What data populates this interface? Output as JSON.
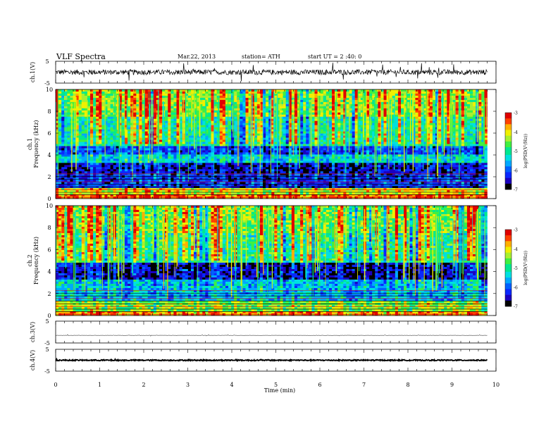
{
  "header": {
    "title": "VLF  Spectra",
    "date": "Mar.22, 2013",
    "station": "station= ATH",
    "start": "start  UT  =   2 :40: 0"
  },
  "colors": {
    "scale": [
      "#000000",
      "#1a00c0",
      "#0a28ff",
      "#0060ff",
      "#00a8ff",
      "#00e0e0",
      "#00e890",
      "#40f040",
      "#a8f030",
      "#f0f000",
      "#ffb000",
      "#ff4000",
      "#e00000",
      "#ffffff"
    ],
    "trace": "#000000"
  },
  "chart_data": [
    {
      "id": "ch1_waveform",
      "type": "line",
      "ylabel": "ch.1(V)",
      "yticks": [
        "5",
        "-5"
      ],
      "ylim": [
        -5,
        5
      ],
      "xlim": [
        0,
        10
      ],
      "data_extent_min": 9.8,
      "description_values": {
        "mean": 0,
        "noise_amplitude": 1.2,
        "spike_amplitude": 3.5
      }
    },
    {
      "id": "ch1_spectrogram",
      "type": "heatmap",
      "ylabel": "ch.1\nFrequency  (kHz)",
      "yticks": [
        "0",
        "2",
        "4",
        "6",
        "8",
        "10"
      ],
      "ylim": [
        0,
        10
      ],
      "xlim": [
        0,
        10
      ],
      "data_extent_min": 9.8,
      "colorbar": {
        "label": "log(PSD(V²/Hz))",
        "ticks": [
          "-3",
          "-4",
          "-5",
          "-6",
          "-7"
        ],
        "range": [
          -7,
          -3
        ]
      },
      "band_levels": [
        {
          "f_min": 0,
          "f_max": 0.3,
          "log_psd": -3.6
        },
        {
          "f_min": 0.3,
          "f_max": 1.0,
          "log_psd": -4.2
        },
        {
          "f_min": 1.0,
          "f_max": 2.3,
          "log_psd": -6.3
        },
        {
          "f_min": 2.3,
          "f_max": 3.2,
          "log_psd": -6.6
        },
        {
          "f_min": 3.2,
          "f_max": 4.0,
          "log_psd": -5.4
        },
        {
          "f_min": 4.0,
          "f_max": 4.8,
          "log_psd": -6.2
        },
        {
          "f_min": 4.8,
          "f_max": 7.5,
          "log_psd": -5.1
        },
        {
          "f_min": 7.5,
          "f_max": 10,
          "log_psd": -4.5
        }
      ]
    },
    {
      "id": "ch2_spectrogram",
      "type": "heatmap",
      "ylabel": "ch.2\nFrequency  (kHz)",
      "yticks": [
        "0",
        "2",
        "4",
        "6",
        "8",
        "10"
      ],
      "ylim": [
        0,
        10
      ],
      "xlim": [
        0,
        10
      ],
      "data_extent_min": 9.8,
      "colorbar": {
        "label": "log(PSD(V²/Hz))",
        "ticks": [
          "-3",
          "-4",
          "-5",
          "-6",
          "-7"
        ],
        "range": [
          -7,
          -3
        ]
      },
      "band_levels": [
        {
          "f_min": 0,
          "f_max": 0.3,
          "log_psd": -3.8
        },
        {
          "f_min": 0.3,
          "f_max": 1.3,
          "log_psd": -4.6
        },
        {
          "f_min": 1.3,
          "f_max": 3.2,
          "log_psd": -5.6
        },
        {
          "f_min": 3.2,
          "f_max": 4.9,
          "log_psd": -6.6
        },
        {
          "f_min": 4.9,
          "f_max": 7.5,
          "log_psd": -5.0
        },
        {
          "f_min": 7.5,
          "f_max": 10,
          "log_psd": -4.6
        }
      ]
    },
    {
      "id": "ch3_waveform",
      "type": "line",
      "ylabel": "ch.3(V)",
      "yticks": [
        "5",
        "-5"
      ],
      "ylim": [
        -5,
        5
      ],
      "xlim": [
        0,
        10
      ],
      "data_extent_min": 9.8,
      "description_values": {
        "mean": -1.5,
        "noise_amplitude": 0.05,
        "spike_amplitude": 0.4
      }
    },
    {
      "id": "ch4_waveform",
      "type": "line",
      "ylabel": "ch.4(V)",
      "yticks": [
        "5",
        "-5"
      ],
      "ylim": [
        -5,
        5
      ],
      "xlim": [
        0,
        10
      ],
      "data_extent_min": 9.8,
      "description_values": {
        "mean": 0,
        "noise_amplitude": 0.25,
        "spike_amplitude": 0.3
      }
    }
  ],
  "x_axis": {
    "label": "Time  (min)",
    "ticks": [
      "0",
      "1",
      "2",
      "3",
      "4",
      "5",
      "6",
      "7",
      "8",
      "9",
      "10"
    ],
    "range": [
      0,
      10
    ]
  }
}
